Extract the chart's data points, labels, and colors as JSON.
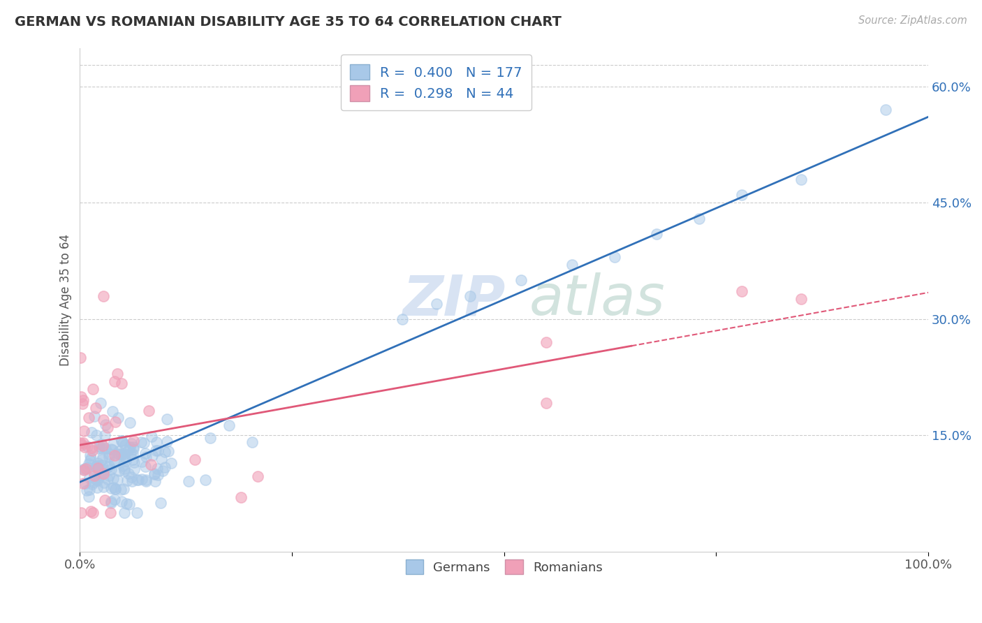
{
  "title": "GERMAN VS ROMANIAN DISABILITY AGE 35 TO 64 CORRELATION CHART",
  "source": "Source: ZipAtlas.com",
  "ylabel": "Disability Age 35 to 64",
  "xlim": [
    0,
    1.0
  ],
  "ylim": [
    0,
    0.65
  ],
  "xticks": [
    0.0,
    1.0
  ],
  "yticks": [
    0.15,
    0.3,
    0.45,
    0.6
  ],
  "german_color": "#a8c8e8",
  "romanian_color": "#f0a0b8",
  "german_line_color": "#3070b8",
  "romanian_line_color": "#e05878",
  "german_R": 0.4,
  "german_N": 177,
  "romanian_R": 0.298,
  "romanian_N": 44,
  "background_color": "#ffffff",
  "grid_color": "#cccccc",
  "watermark_zip_color": "#c0d4e8",
  "watermark_atlas_color": "#c8d8e0",
  "legend_label_color": "#3070b8"
}
